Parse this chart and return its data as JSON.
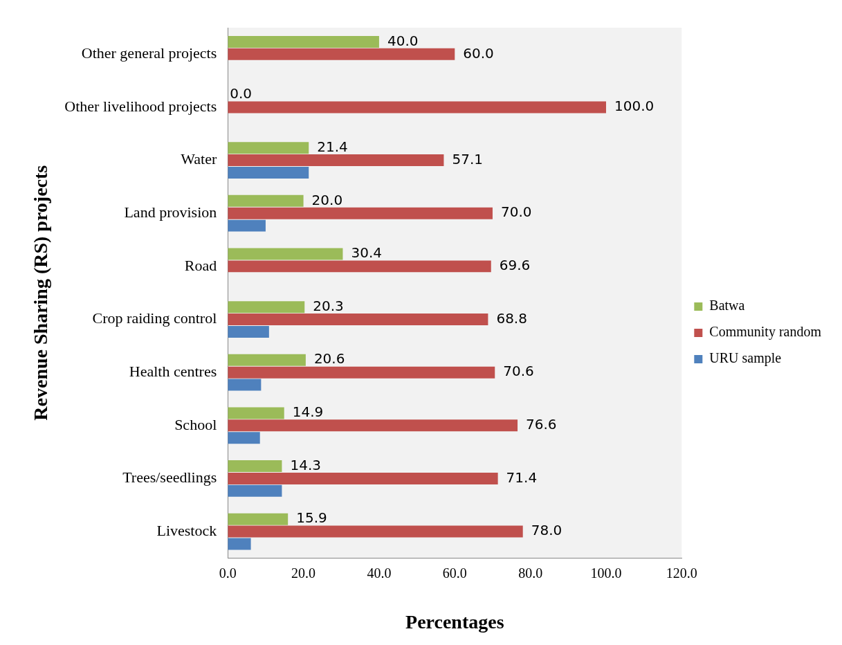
{
  "chart_data": {
    "type": "bar",
    "orientation": "horizontal",
    "xlabel": "Percentages",
    "ylabel": "Revenue Sharing (RS) projects",
    "categories": [
      "Other general projects",
      "Other livelihood projects",
      "Water",
      "Land provision",
      "Road",
      "Crop raiding control",
      "Health centres",
      "School",
      "Trees/seedlings",
      "Livestock"
    ],
    "series": [
      {
        "name": "Batwa",
        "color": "#9bbb59",
        "values": [
          40.0,
          0.0,
          21.4,
          20.0,
          30.4,
          20.3,
          20.6,
          14.9,
          14.3,
          15.9
        ],
        "value_labels": [
          "40.0",
          "0.0",
          "21.4",
          "20.0",
          "30.4",
          "20.3",
          "20.6",
          "14.9",
          "14.3",
          "15.9"
        ]
      },
      {
        "name": "Community random",
        "color": "#c0504d",
        "values": [
          60.0,
          100.0,
          57.1,
          70.0,
          69.6,
          68.8,
          70.6,
          76.6,
          71.4,
          78.0
        ],
        "value_labels": [
          "60.0",
          "100.0",
          "57.1",
          "70.0",
          "69.6",
          "68.8",
          "70.6",
          "76.6",
          "71.4",
          "78.0"
        ]
      },
      {
        "name": "URU sample",
        "color": "#4f81bd",
        "values": [
          null,
          null,
          21.4,
          10.0,
          null,
          10.9,
          8.8,
          8.5,
          14.3,
          6.1
        ]
      }
    ],
    "xlim": [
      0,
      120
    ],
    "xticks": [
      {
        "value": 0,
        "label": "0.0"
      },
      {
        "value": 20,
        "label": "20.0"
      },
      {
        "value": 40,
        "label": "40.0"
      },
      {
        "value": 60,
        "label": "60.0"
      },
      {
        "value": 80,
        "label": "80.0"
      },
      {
        "value": 100,
        "label": "100.0"
      },
      {
        "value": 120,
        "label": "120.0"
      }
    ],
    "grid": false,
    "legend": "right"
  }
}
